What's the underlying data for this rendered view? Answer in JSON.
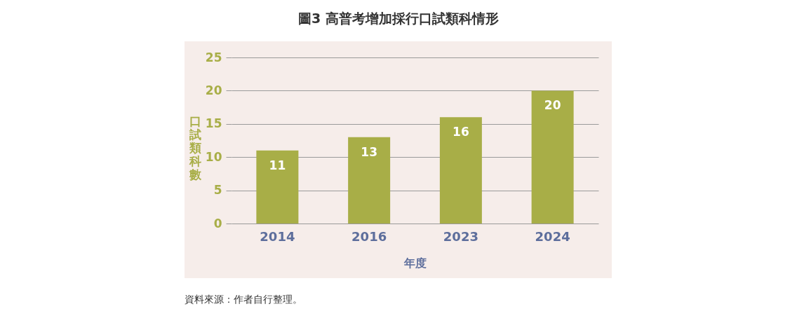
{
  "chart_data": {
    "type": "bar",
    "title": "圖3 高普考增加採行口試類科情形",
    "categories": [
      "2014",
      "2016",
      "2023",
      "2024"
    ],
    "values": [
      11,
      13,
      16,
      20
    ],
    "color": "#a8ae47",
    "xlabel": "年度",
    "ylabel": "口試類科數",
    "ylim": [
      0,
      25
    ],
    "yticks": [
      0,
      5,
      10,
      15,
      20,
      25
    ],
    "grid": "y",
    "data_labels": true,
    "annotations": [
      "資料來源：作者自行整理。"
    ]
  }
}
